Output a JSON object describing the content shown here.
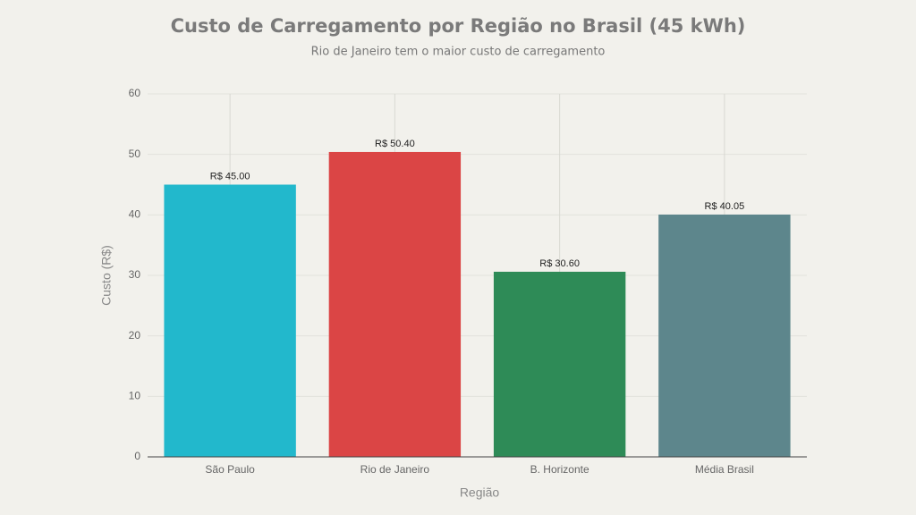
{
  "chart_data": {
    "type": "bar",
    "title": "Custo de Carregamento por Região no Brasil (45 kWh)",
    "subtitle": "Rio de Janeiro tem o maior custo de carregamento",
    "x_label": "Região",
    "y_label": "Custo (R$)",
    "categories": [
      "São Paulo",
      "Rio de Janeiro",
      "B. Horizonte",
      "Média Brasil"
    ],
    "values": [
      45,
      50.4,
      30.6,
      40.05
    ],
    "value_labels": [
      "R$ 45.00",
      "R$ 50.40",
      "R$ 30.60",
      "R$ 40.05"
    ],
    "colors": [
      "#22b8cc",
      "#db4545",
      "#2e8b57",
      "#5d868c"
    ],
    "ylim": [
      0,
      60
    ],
    "yticks": [
      0,
      10,
      20,
      30,
      40,
      50,
      60
    ],
    "grid": true
  }
}
